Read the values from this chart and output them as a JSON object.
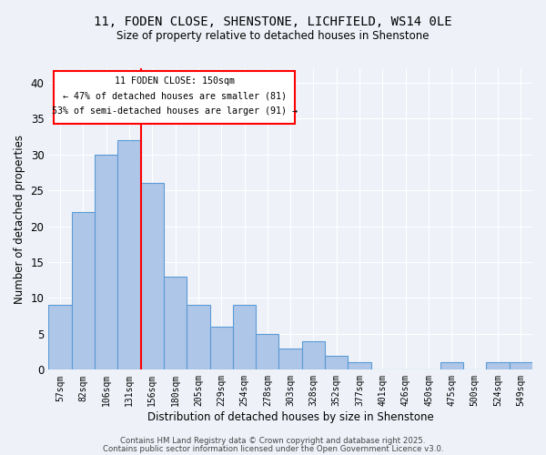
{
  "title_line1": "11, FODEN CLOSE, SHENSTONE, LICHFIELD, WS14 0LE",
  "title_line2": "Size of property relative to detached houses in Shenstone",
  "xlabel": "Distribution of detached houses by size in Shenstone",
  "ylabel": "Number of detached properties",
  "categories": [
    "57sqm",
    "82sqm",
    "106sqm",
    "131sqm",
    "156sqm",
    "180sqm",
    "205sqm",
    "229sqm",
    "254sqm",
    "278sqm",
    "303sqm",
    "328sqm",
    "352sqm",
    "377sqm",
    "401sqm",
    "426sqm",
    "450sqm",
    "475sqm",
    "500sqm",
    "524sqm",
    "549sqm"
  ],
  "values": [
    9,
    22,
    30,
    32,
    26,
    13,
    9,
    6,
    9,
    5,
    3,
    4,
    2,
    1,
    0,
    0,
    0,
    1,
    0,
    1,
    1
  ],
  "bar_color": "#aec6e8",
  "bar_edge_color": "#5b9bd5",
  "red_line_x": 3.5,
  "ylim": [
    0,
    42
  ],
  "yticks": [
    0,
    5,
    10,
    15,
    20,
    25,
    30,
    35,
    40
  ],
  "annotation_title": "11 FODEN CLOSE: 150sqm",
  "annotation_line1": "← 47% of detached houses are smaller (81)",
  "annotation_line2": "53% of semi-detached houses are larger (91) →",
  "footer_line1": "Contains HM Land Registry data © Crown copyright and database right 2025.",
  "footer_line2": "Contains public sector information licensed under the Open Government Licence v3.0.",
  "background_color": "#eef2f8"
}
